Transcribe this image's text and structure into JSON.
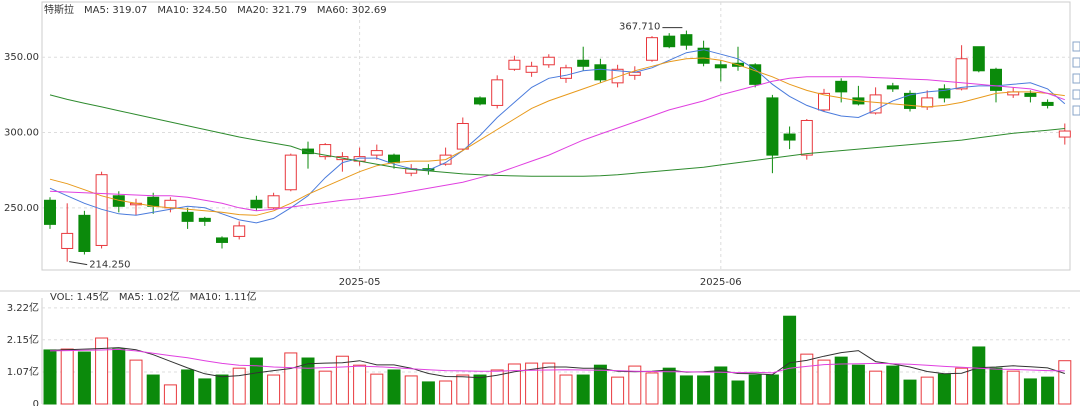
{
  "chart_data": [
    {
      "type": "candlestick",
      "title": "特斯拉",
      "categories": [
        null,
        null,
        null,
        null,
        null,
        null,
        null,
        null,
        null,
        null,
        null,
        null,
        null,
        null,
        null,
        null,
        null,
        null,
        "2025-05",
        null,
        null,
        null,
        null,
        null,
        null,
        null,
        null,
        null,
        null,
        null,
        null,
        null,
        null,
        null,
        null,
        null,
        null,
        null,
        null,
        "2025-06",
        null,
        null,
        null,
        null,
        null,
        null,
        null,
        null,
        null,
        null,
        null,
        null,
        null,
        null,
        null,
        null,
        null,
        null,
        null,
        null
      ],
      "open": [
        255,
        223,
        245,
        225,
        258,
        252,
        257,
        250,
        247,
        243,
        230,
        231,
        255,
        250,
        262,
        289,
        284,
        282,
        281,
        285,
        285,
        273,
        276,
        279,
        289,
        323,
        318,
        342,
        340,
        345,
        336,
        348,
        345,
        333,
        338,
        348,
        364,
        365,
        356,
        345,
        346,
        345,
        323,
        299,
        285,
        315,
        334,
        323,
        313,
        331,
        326,
        317,
        329,
        329,
        357,
        342,
        325,
        326,
        320,
        297
      ],
      "high": [
        257,
        253,
        248,
        274,
        261,
        256,
        260,
        257,
        250,
        244,
        231,
        241,
        258,
        260,
        286,
        294,
        293,
        287,
        290,
        292,
        286,
        279,
        279,
        290,
        310,
        324,
        338,
        351,
        347,
        352,
        345,
        357,
        349,
        345,
        344,
        364,
        366,
        367.71,
        361,
        348,
        357,
        346,
        325,
        304,
        309,
        329,
        336,
        331,
        330,
        333,
        328,
        328,
        332,
        358,
        357,
        343,
        330,
        328,
        322,
        306
      ],
      "low": [
        236,
        214.25,
        219,
        223,
        247,
        245,
        246,
        247,
        236,
        238,
        223,
        229,
        248,
        249,
        261,
        276,
        282,
        274,
        278,
        282,
        276,
        271,
        272,
        278,
        288,
        318,
        316,
        341,
        337,
        343,
        333,
        341,
        333,
        330,
        335,
        347,
        356,
        355,
        344,
        334,
        341,
        330,
        273,
        289,
        282,
        314,
        320,
        318,
        312,
        327,
        314,
        315,
        320,
        328,
        340,
        320,
        323,
        320,
        316,
        292
      ],
      "close": [
        239,
        233,
        221,
        272,
        251,
        253,
        251,
        255,
        241,
        241,
        227,
        238,
        250,
        258,
        285,
        286,
        292,
        284,
        284,
        288,
        280,
        276,
        275,
        285,
        306,
        319,
        335,
        348,
        344,
        350,
        343,
        344,
        335,
        342,
        340,
        363,
        357,
        358,
        346,
        343,
        344,
        332,
        285,
        295,
        308,
        326,
        327,
        319,
        325,
        329,
        316,
        323,
        323,
        349,
        341,
        328,
        327,
        324,
        318,
        301
      ],
      "up_color": "#e8383d",
      "down_color": "#0b8a0b",
      "series": [
        {
          "name": "MA5: 319.07",
          "color": "#4a7bdc",
          "values": [
            263,
            258,
            253,
            249,
            246,
            245,
            247,
            249,
            251,
            250,
            246,
            242,
            240,
            243,
            250,
            258,
            270,
            280,
            283,
            283,
            279,
            276,
            275,
            280,
            288,
            298,
            310,
            320,
            330,
            336,
            338,
            341,
            342,
            341,
            340,
            343,
            348,
            353,
            355,
            352,
            349,
            342,
            332,
            324,
            318,
            314,
            311,
            310,
            315,
            321,
            325,
            327,
            328,
            330,
            331,
            331,
            332,
            333,
            329,
            319.07
          ]
        },
        {
          "name": "MA10: 324.50",
          "color": "#e89a1c",
          "values": [
            269,
            266,
            262,
            258,
            255,
            253,
            251,
            250,
            249,
            248,
            247,
            245.5,
            245,
            248,
            253,
            259,
            264,
            269,
            274,
            278,
            280,
            281,
            281,
            282,
            288,
            295,
            302,
            309,
            316,
            321,
            325,
            329,
            333,
            337,
            341,
            344,
            347,
            349,
            349.5,
            348,
            345,
            341,
            337,
            332,
            328,
            325,
            323,
            321,
            320,
            319,
            318,
            317,
            318,
            320,
            323,
            326,
            327,
            327,
            326,
            324.5
          ]
        },
        {
          "name": "MA20: 321.79",
          "color": "#e040e0",
          "values": [
            261,
            260.5,
            260,
            259.5,
            259,
            258.5,
            258,
            258,
            257,
            255,
            253,
            250,
            248,
            249,
            250.5,
            252,
            253.5,
            255,
            256,
            257.5,
            259,
            261,
            263,
            265,
            267,
            270,
            273,
            277,
            281,
            285,
            290,
            295,
            299,
            303,
            307,
            311,
            315,
            318,
            321,
            325,
            328,
            331,
            334,
            336,
            337,
            337,
            337,
            337,
            336.5,
            336,
            335.5,
            335,
            334,
            333,
            332,
            331,
            330,
            329,
            326,
            321.79
          ]
        },
        {
          "name": "MA60: 302.69",
          "color": "#2e8b2e",
          "values": [
            325,
            322,
            319.5,
            317,
            314.5,
            312,
            309.5,
            307,
            304.5,
            302,
            299.5,
            297,
            295,
            293,
            291,
            287,
            285,
            283,
            281,
            279,
            277,
            275.5,
            274.5,
            273.5,
            272.5,
            272,
            271.5,
            271.2,
            271,
            271,
            271,
            271,
            271.3,
            272,
            273,
            274,
            275,
            276,
            277,
            278.5,
            280,
            281.5,
            283,
            284.5,
            286,
            287,
            288,
            289,
            290,
            291,
            292,
            293,
            294,
            295,
            296.5,
            298,
            299.5,
            300.5,
            301.5,
            302.69
          ]
        }
      ],
      "max_label": {
        "value": 367.71,
        "label": "367.710"
      },
      "min_label": {
        "value": 214.25,
        "label": "214.250"
      },
      "ylim": [
        208.7,
        384.7
      ],
      "yticks": [
        {
          "value": 250,
          "label": "250.00"
        },
        {
          "value": 300,
          "label": "300.00"
        },
        {
          "value": 350,
          "label": "350.00"
        }
      ],
      "grid": true
    },
    {
      "type": "bar",
      "series": [
        {
          "name": "VOL: 1.45亿",
          "color": "#e040e0",
          "values": [
            1.81,
            1.84,
            1.74,
            2.21,
            1.84,
            1.47,
            0.97,
            0.64,
            1.14,
            0.84,
            0.97,
            1.2,
            1.54,
            0.97,
            1.71,
            1.54,
            1.1,
            1.6,
            1.3,
            1.0,
            1.14,
            0.94,
            0.74,
            0.77,
            0.97,
            0.97,
            1.14,
            1.34,
            1.37,
            1.37,
            0.97,
            0.97,
            1.3,
            0.9,
            1.27,
            1.04,
            1.2,
            0.94,
            0.94,
            1.24,
            0.77,
            0.97,
            0.97,
            2.94,
            1.67,
            1.47,
            1.57,
            1.3,
            1.1,
            1.27,
            0.8,
            0.9,
            1.0,
            1.2,
            1.91,
            1.2,
            1.1,
            0.84,
            0.9,
            1.45
          ]
        },
        {
          "name": "MA5: 1.02亿",
          "color": "#333333",
          "values": [
            1.8,
            1.82,
            1.84,
            1.86,
            1.89,
            1.82,
            1.65,
            1.43,
            1.21,
            1.01,
            0.91,
            0.95,
            1.04,
            1.12,
            1.19,
            1.35,
            1.37,
            1.38,
            1.45,
            1.31,
            1.31,
            1.2,
            1.02,
            0.92,
            0.91,
            0.88,
            0.96,
            1.08,
            1.16,
            1.24,
            1.24,
            1.2,
            1.2,
            1.1,
            1.08,
            1.1,
            1.14,
            1.07,
            1.08,
            1.12,
            1.02,
            1.01,
            0.98,
            1.38,
            1.46,
            1.6,
            1.72,
            1.79,
            1.42,
            1.34,
            1.24,
            1.09,
            1.01,
            1.03,
            1.22,
            1.24,
            1.28,
            1.25,
            1.21,
            1.02
          ]
        },
        {
          "name": "MA10: 1.11亿",
          "color": "#e040e0",
          "values": [
            1.78,
            1.79,
            1.8,
            1.81,
            1.83,
            1.78,
            1.7,
            1.62,
            1.55,
            1.45,
            1.36,
            1.3,
            1.28,
            1.24,
            1.22,
            1.2,
            1.22,
            1.24,
            1.27,
            1.25,
            1.22,
            1.18,
            1.15,
            1.12,
            1.11,
            1.1,
            1.1,
            1.12,
            1.13,
            1.14,
            1.15,
            1.14,
            1.13,
            1.12,
            1.1,
            1.09,
            1.08,
            1.08,
            1.07,
            1.06,
            1.05,
            1.06,
            1.04,
            1.2,
            1.26,
            1.32,
            1.34,
            1.35,
            1.36,
            1.35,
            1.33,
            1.3,
            1.26,
            1.23,
            1.2,
            1.17,
            1.16,
            1.14,
            1.12,
            1.11
          ]
        }
      ],
      "ylim": [
        0,
        3.55
      ],
      "yticks": [
        0,
        {
          "value": 1.07,
          "label": "1.07亿"
        },
        {
          "value": 2.15,
          "label": "2.15亿"
        },
        {
          "value": 3.22,
          "label": "3.22亿"
        }
      ],
      "grid": true
    }
  ]
}
